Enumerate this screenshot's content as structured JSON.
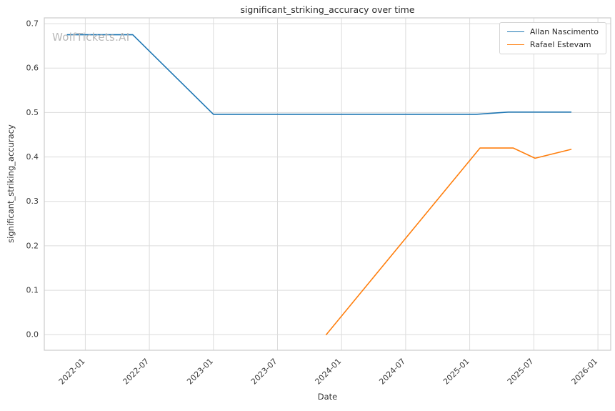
{
  "chart_data": {
    "type": "line",
    "title": "significant_striking_accuracy over time",
    "xlabel": "Date",
    "ylabel": "significant_striking_accuracy",
    "watermark": "WolfTickets.AI",
    "grid": true,
    "legend_position": "top-right",
    "xlim": [
      2021.68,
      2026.1
    ],
    "ylim": [
      -0.035,
      0.713
    ],
    "xticks": [
      {
        "v": 2022.0,
        "label": "2022-01"
      },
      {
        "v": 2022.5,
        "label": "2022-07"
      },
      {
        "v": 2023.0,
        "label": "2023-01"
      },
      {
        "v": 2023.5,
        "label": "2023-07"
      },
      {
        "v": 2024.0,
        "label": "2024-01"
      },
      {
        "v": 2024.5,
        "label": "2024-07"
      },
      {
        "v": 2025.0,
        "label": "2025-01"
      },
      {
        "v": 2025.5,
        "label": "2025-07"
      },
      {
        "v": 2026.0,
        "label": "2026-01"
      }
    ],
    "yticks": [
      {
        "v": 0.0,
        "label": "0.0"
      },
      {
        "v": 0.1,
        "label": "0.1"
      },
      {
        "v": 0.2,
        "label": "0.2"
      },
      {
        "v": 0.3,
        "label": "0.3"
      },
      {
        "v": 0.4,
        "label": "0.4"
      },
      {
        "v": 0.5,
        "label": "0.5"
      },
      {
        "v": 0.6,
        "label": "0.6"
      },
      {
        "v": 0.7,
        "label": "0.7"
      }
    ],
    "series": [
      {
        "name": "Allan Nascimento",
        "color": "#1f77b4",
        "points": [
          [
            2021.86,
            0.675
          ],
          [
            2022.37,
            0.675
          ],
          [
            2023.0,
            0.496
          ],
          [
            2025.05,
            0.496
          ],
          [
            2025.3,
            0.501
          ],
          [
            2025.79,
            0.501
          ]
        ]
      },
      {
        "name": "Rafael Estevam",
        "color": "#ff7f0e",
        "points": [
          [
            2023.88,
            0.0
          ],
          [
            2025.08,
            0.42
          ],
          [
            2025.34,
            0.42
          ],
          [
            2025.51,
            0.397
          ],
          [
            2025.79,
            0.417
          ]
        ]
      }
    ]
  },
  "colors": {
    "grid": "#dcdcdc",
    "axis_border": "#cccccc",
    "tick_text": "#3a3a3a",
    "background": "#ffffff"
  }
}
